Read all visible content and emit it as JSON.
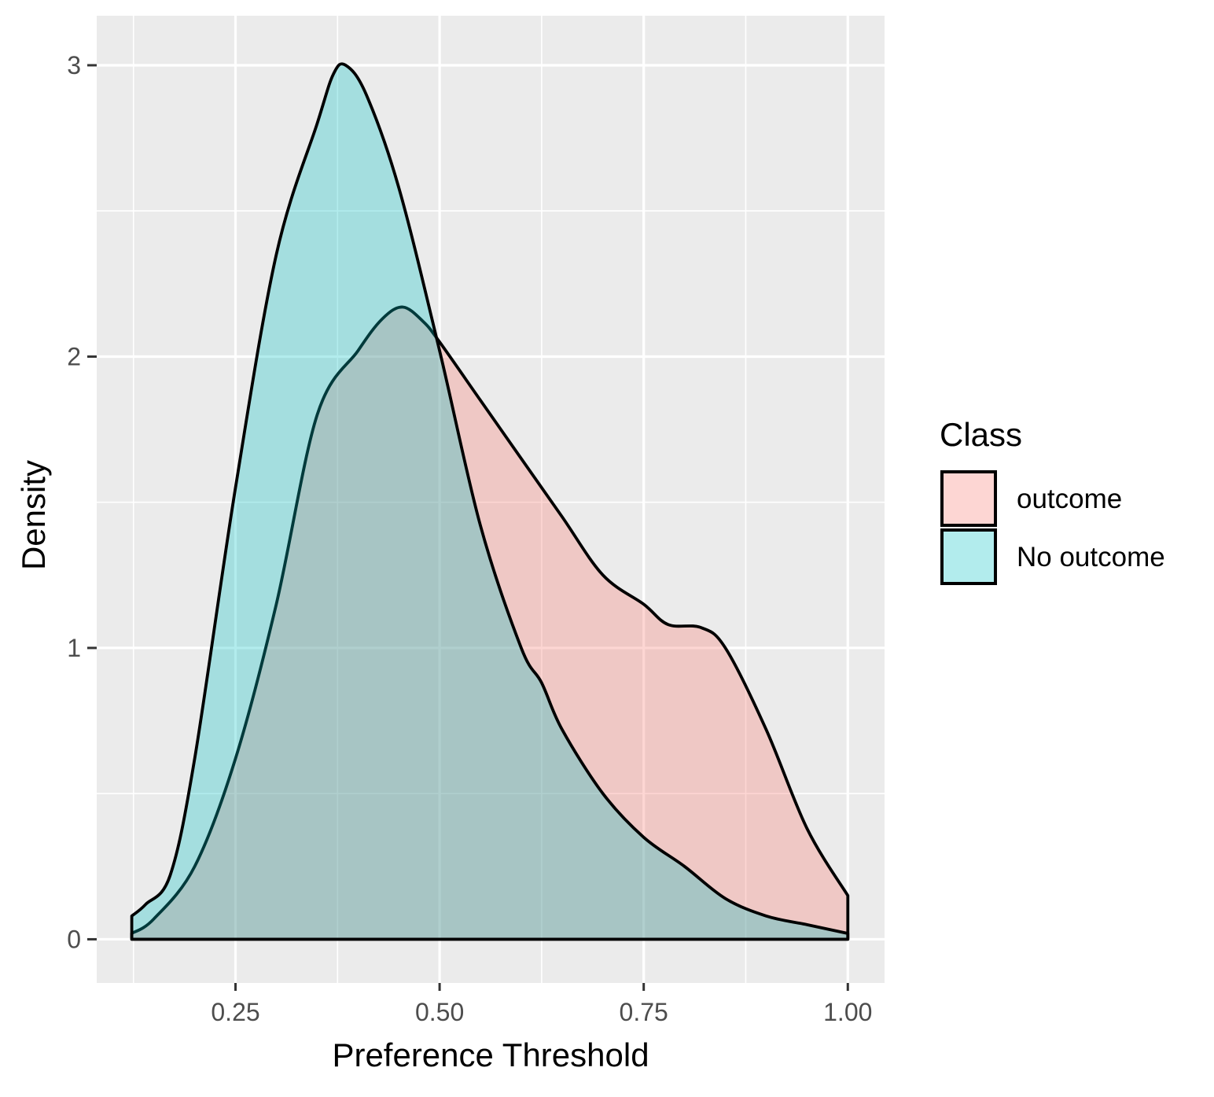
{
  "chart_data": {
    "type": "area",
    "subtype": "density",
    "title": "",
    "xlabel": "Preference Threshold",
    "ylabel": "Density",
    "xlim": [
      0.08,
      1.045
    ],
    "ylim": [
      -0.15,
      3.17
    ],
    "x_ticks": [
      0.25,
      0.5,
      0.75,
      1.0
    ],
    "x_tick_labels": [
      "0.25",
      "0.50",
      "0.75",
      "1.00"
    ],
    "y_ticks": [
      0,
      1,
      2,
      3
    ],
    "y_tick_labels": [
      "0",
      "1",
      "2",
      "3"
    ],
    "grid": true,
    "panel_background": "#ebebeb",
    "legend": {
      "title": "Class",
      "position": "right"
    },
    "series": [
      {
        "name": "outcome",
        "fill": "#f8766d",
        "fill_opacity": 0.3,
        "x": [
          0.123,
          0.15,
          0.2,
          0.25,
          0.3,
          0.35,
          0.4,
          0.43,
          0.455,
          0.48,
          0.5,
          0.55,
          0.6,
          0.65,
          0.7,
          0.75,
          0.78,
          0.82,
          0.85,
          0.9,
          0.95,
          1.0
        ],
        "y": [
          0.02,
          0.07,
          0.25,
          0.62,
          1.15,
          1.8,
          2.02,
          2.13,
          2.17,
          2.12,
          2.05,
          1.85,
          1.65,
          1.45,
          1.25,
          1.15,
          1.08,
          1.07,
          1.0,
          0.72,
          0.38,
          0.15
        ]
      },
      {
        "name": "No outcome",
        "fill": "#00bfc4",
        "fill_opacity": 0.3,
        "x": [
          0.123,
          0.14,
          0.17,
          0.2,
          0.25,
          0.3,
          0.35,
          0.37,
          0.385,
          0.41,
          0.45,
          0.5,
          0.55,
          0.6,
          0.625,
          0.65,
          0.7,
          0.75,
          0.8,
          0.85,
          0.9,
          0.95,
          1.0
        ],
        "y": [
          0.08,
          0.12,
          0.22,
          0.62,
          1.55,
          2.35,
          2.8,
          2.97,
          3.0,
          2.9,
          2.58,
          2.02,
          1.42,
          1.0,
          0.88,
          0.72,
          0.5,
          0.35,
          0.25,
          0.14,
          0.08,
          0.05,
          0.02
        ]
      }
    ]
  }
}
